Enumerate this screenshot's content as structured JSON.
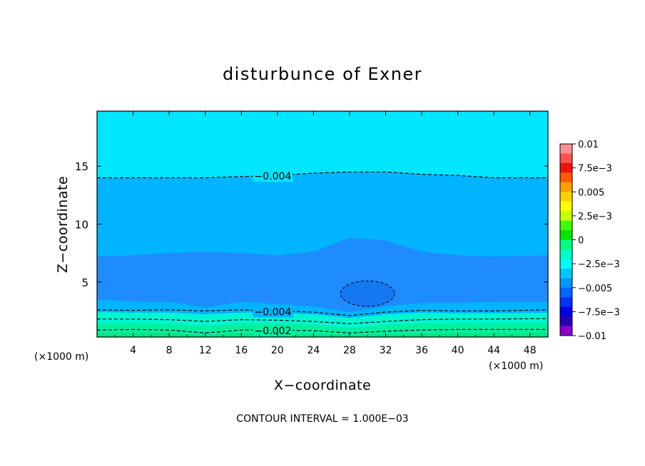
{
  "chart_data": {
    "type": "heatmap",
    "title": "disturbunce of Exner",
    "xlabel": "X−coordinate",
    "ylabel": "Z−coordinate",
    "x_unit_left": "(×1000 m)",
    "x_unit_right": "(×1000 m)",
    "footer": "CONTOUR INTERVAL = 1.000E−03",
    "xlim": [
      0,
      50
    ],
    "ylim": [
      0.25,
      19.75
    ],
    "x_ticks": [
      4,
      8,
      12,
      16,
      20,
      24,
      28,
      32,
      36,
      40,
      44,
      48
    ],
    "x_tick_labels": [
      "4",
      "8",
      "12",
      "16",
      "20",
      "24",
      "28",
      "32",
      "36",
      "40",
      "44",
      "48"
    ],
    "y_ticks": [
      5,
      10,
      15
    ],
    "y_tick_labels": [
      "5",
      "10",
      "15"
    ],
    "colorbar": {
      "min": -0.01,
      "max": 0.01,
      "labels": [
        "0.01",
        "7.5e−3",
        "0.005",
        "2.5e−3",
        "0",
        "−2.5e−3",
        "−0.005",
        "−7.5e−3",
        "−0.01"
      ],
      "colors_top_to_bottom": [
        "#ff9090",
        "#ff5050",
        "#f01010",
        "#ff5a00",
        "#ffa000",
        "#ffd200",
        "#ffff00",
        "#c8ff00",
        "#40ff00",
        "#00e600",
        "#00ff80",
        "#00ffc8",
        "#00ffff",
        "#00c8ff",
        "#0096ff",
        "#0064ff",
        "#0032ff",
        "#0000e6",
        "#2800b4",
        "#8c00c8"
      ]
    },
    "fill_levels": [
      {
        "range": [
          -0.006,
          -0.005
        ],
        "color": "#1e8cff"
      },
      {
        "range": [
          -0.005,
          -0.004
        ],
        "color": "#00b4ff"
      },
      {
        "range": [
          -0.004,
          -0.003
        ],
        "color": "#00e6ff"
      },
      {
        "range": [
          -0.003,
          -0.002
        ],
        "color": "#00f5d2"
      },
      {
        "range": [
          -0.002,
          -0.001
        ],
        "color": "#00f0a0"
      },
      {
        "range": [
          -0.001,
          0.0
        ],
        "color": "#00e682"
      }
    ],
    "contours": [
      {
        "level": -0.004,
        "label": "−0.004",
        "z_values": [
          14.0,
          14.0,
          14.0,
          14.0,
          14.1,
          14.2,
          14.4,
          14.5,
          14.5,
          14.3,
          14.2,
          14.0,
          14.0
        ]
      },
      {
        "level": -0.004,
        "label": "−0.004",
        "z_values": [
          2.6,
          2.55,
          2.6,
          2.5,
          2.6,
          2.5,
          2.4,
          2.1,
          2.4,
          2.55,
          2.5,
          2.5,
          2.6
        ]
      },
      {
        "level": -0.003,
        "label": "",
        "z_values": [
          1.8,
          1.8,
          1.75,
          1.6,
          1.75,
          1.7,
          1.6,
          1.4,
          1.6,
          1.75,
          1.8,
          1.8,
          1.85
        ]
      },
      {
        "level": -0.002,
        "label": "−0.002",
        "z_values": [
          0.85,
          0.9,
          0.85,
          0.6,
          0.85,
          0.85,
          0.8,
          0.6,
          0.75,
          0.85,
          0.9,
          0.9,
          0.9
        ]
      }
    ],
    "contour_x": [
      0,
      4,
      8,
      12,
      16,
      20,
      24,
      28,
      32,
      36,
      40,
      44,
      50
    ],
    "region_boundaries": {
      "x": [
        0,
        4,
        8,
        12,
        16,
        20,
        24,
        28,
        32,
        36,
        40,
        44,
        50
      ],
      "z_-0.005_top": [
        7.2,
        7.3,
        7.5,
        7.6,
        7.5,
        7.3,
        7.6,
        8.8,
        8.6,
        7.6,
        7.3,
        7.2,
        7.3
      ],
      "z_-0.005_bottom": [
        3.5,
        3.3,
        3.3,
        2.8,
        3.3,
        3.1,
        2.9,
        2.4,
        2.9,
        3.2,
        3.2,
        3.3,
        3.3
      ],
      "z_-0.003_bottom": [
        2.4,
        2.35,
        2.35,
        2.2,
        2.35,
        2.35,
        2.2,
        1.9,
        2.2,
        2.35,
        2.3,
        2.3,
        2.35
      ],
      "z_-0.002_bottom": [
        1.4,
        1.45,
        1.4,
        1.2,
        1.45,
        1.4,
        1.35,
        1.0,
        1.3,
        1.45,
        1.45,
        1.4,
        1.45
      ],
      "z_-0.001_bottom": [
        0.55,
        0.6,
        0.6,
        0.45,
        0.6,
        0.55,
        0.5,
        0.45,
        0.5,
        0.55,
        0.6,
        0.6,
        0.6
      ]
    },
    "ellipse_-0.006": {
      "cx": 30,
      "cz": 4.0,
      "rx": 3.0,
      "rz": 1.1
    }
  }
}
